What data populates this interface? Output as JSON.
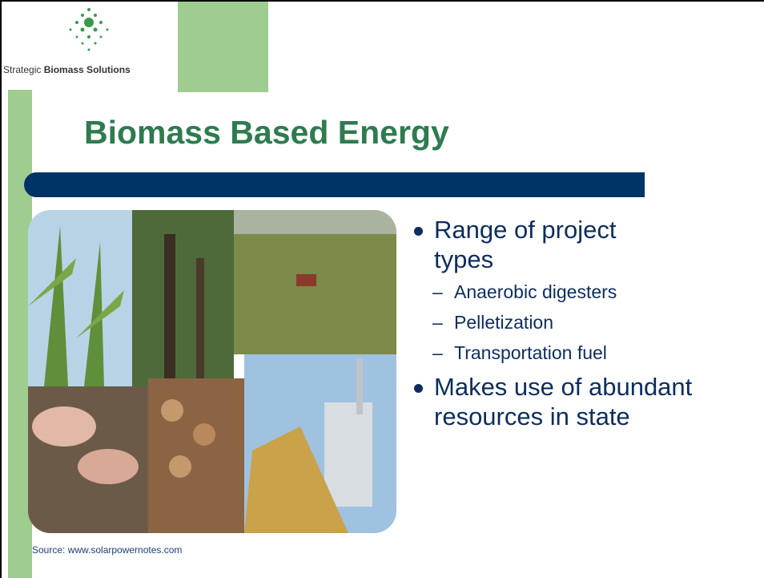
{
  "logo": {
    "text_plain": "Strategic",
    "text_bold": "Biomass Solutions"
  },
  "title": "Biomass Based Energy",
  "bullets": [
    {
      "text": "Range of project types",
      "sub": [
        "Anaerobic digesters",
        "Pelletization",
        "Transportation fuel"
      ]
    },
    {
      "text": "Makes use of abundant resources in state",
      "sub": []
    }
  ],
  "source": "Source: www.solarpowernotes.com"
}
